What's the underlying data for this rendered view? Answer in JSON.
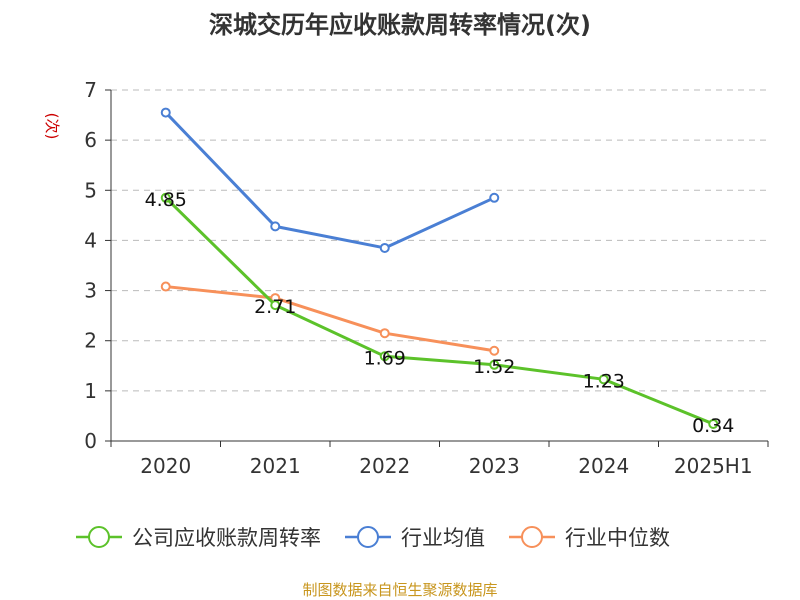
{
  "chart_data": {
    "type": "line",
    "title": "深城交历年应收账款周转率情况(次)",
    "ylabel": "(次)",
    "categories": [
      "2020",
      "2021",
      "2022",
      "2023",
      "2024",
      "2025H1"
    ],
    "ylim": [
      0,
      7
    ],
    "yticks": [
      0,
      1,
      2,
      3,
      4,
      5,
      6,
      7
    ],
    "grid": true,
    "legend_position": "bottom",
    "series": [
      {
        "name": "公司应收账款周转率",
        "color": "#5cc22a",
        "values": [
          4.85,
          2.71,
          1.69,
          1.52,
          1.23,
          0.34
        ],
        "labels": [
          "4.85",
          "2.71",
          "1.69",
          "1.52",
          "1.23",
          "0.34"
        ]
      },
      {
        "name": "行业均值",
        "color": "#4a7fd4",
        "values": [
          6.55,
          4.28,
          3.85,
          4.85,
          null,
          null
        ]
      },
      {
        "name": "行业中位数",
        "color": "#f7905a",
        "values": [
          3.08,
          2.85,
          2.15,
          1.8,
          null,
          null
        ]
      }
    ]
  },
  "source_text": "制图数据来自恒生聚源数据库",
  "colors": {
    "ylabel": "#cc0000",
    "source": "#c8961e",
    "axis": "#333333",
    "grid": "#bbbbbb"
  }
}
